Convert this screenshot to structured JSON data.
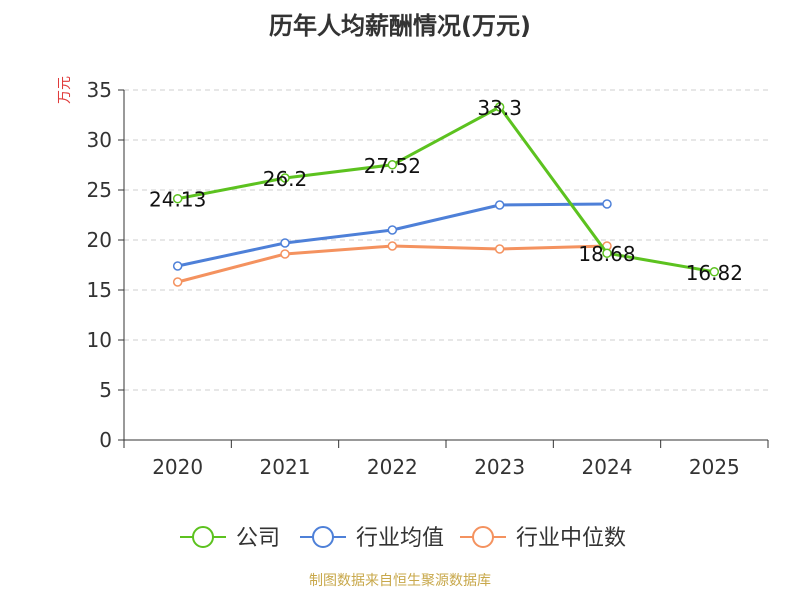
{
  "chart_data": {
    "type": "line",
    "title": "历年人均薪酬情况(万元)",
    "ylabel": "万元",
    "categories": [
      "2020",
      "2021",
      "2022",
      "2023",
      "2024",
      "2025"
    ],
    "ylim": [
      0,
      35
    ],
    "yticks": [
      0,
      5,
      10,
      15,
      20,
      25,
      30,
      35
    ],
    "grid": true,
    "legend_position": "bottom",
    "series": [
      {
        "name": "公司",
        "color": "#5cc21f",
        "values": [
          24.13,
          26.2,
          27.52,
          33.3,
          18.68,
          16.82
        ],
        "labels": [
          "24.13",
          "26.2",
          "27.52",
          "33.3",
          "18.68",
          "16.82"
        ]
      },
      {
        "name": "行业均值",
        "color": "#4e80d8",
        "values": [
          17.4,
          19.7,
          21.0,
          23.5,
          23.6,
          null
        ]
      },
      {
        "name": "行业中位数",
        "color": "#f4925f",
        "values": [
          15.8,
          18.6,
          19.4,
          19.1,
          19.4,
          null
        ]
      }
    ]
  },
  "source": "制图数据来自恒生聚源数据库"
}
